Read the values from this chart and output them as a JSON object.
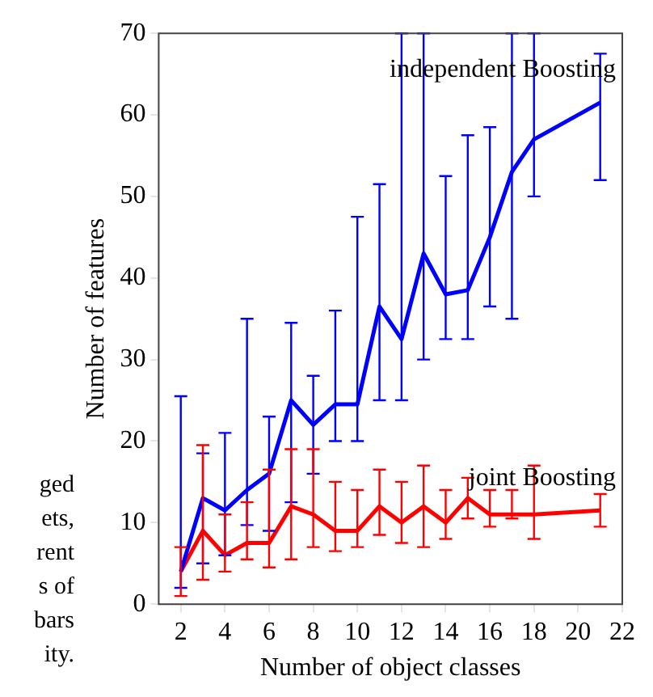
{
  "chart_data": {
    "type": "line",
    "xlabel": "Number of object classes",
    "ylabel": "Number of features",
    "x": [
      2,
      3,
      4,
      5,
      6,
      7,
      8,
      9,
      10,
      11,
      12,
      13,
      14,
      15,
      16,
      17,
      18,
      21
    ],
    "series": [
      {
        "name": "independent Boosting",
        "color": "#0000ff",
        "values": [
          4,
          13,
          11.5,
          14,
          16,
          25,
          22,
          24.5,
          24.5,
          36.5,
          32.5,
          43,
          38,
          38.5,
          45,
          53,
          57,
          61.5
        ],
        "errors": [
          [
            2,
            25.5
          ],
          [
            5,
            18.5
          ],
          [
            6,
            21
          ],
          [
            9.7,
            35
          ],
          [
            9,
            23
          ],
          [
            12.5,
            34.5
          ],
          [
            16,
            28
          ],
          [
            20,
            36
          ],
          [
            20,
            47.5
          ],
          [
            25,
            51.5
          ],
          [
            25,
            70
          ],
          [
            30,
            70
          ],
          [
            32.5,
            52.5
          ],
          [
            32.5,
            57.5
          ],
          [
            36.5,
            58.5
          ],
          [
            35,
            70
          ],
          [
            50,
            70
          ],
          [
            52,
            67.5
          ]
        ]
      },
      {
        "name": "joint Boosting",
        "color": "#ff0000",
        "values": [
          4,
          9,
          6,
          7.5,
          7.5,
          12,
          11,
          9,
          9,
          12,
          10,
          12,
          10,
          13,
          11,
          11,
          11,
          11.5
        ],
        "errors": [
          [
            1,
            7
          ],
          [
            3,
            19.5
          ],
          [
            4,
            11
          ],
          [
            5.5,
            12.5
          ],
          [
            4.5,
            16.5
          ],
          [
            5.5,
            19
          ],
          [
            7,
            19
          ],
          [
            6.5,
            15
          ],
          [
            7,
            14
          ],
          [
            8.5,
            16.5
          ],
          [
            7.5,
            15
          ],
          [
            7,
            17
          ],
          [
            8,
            14
          ],
          [
            10.5,
            15.5
          ],
          [
            9.5,
            14
          ],
          [
            10.5,
            14
          ],
          [
            8,
            17
          ],
          [
            9.5,
            13.5
          ]
        ]
      }
    ],
    "xlim": [
      1,
      22
    ],
    "xticks": [
      2,
      4,
      6,
      8,
      10,
      12,
      14,
      16,
      18,
      20,
      22
    ],
    "ylim": [
      0,
      70
    ],
    "yticks": [
      0,
      10,
      20,
      30,
      40,
      50,
      60,
      70
    ],
    "grid": false,
    "legend": false,
    "marker": "none",
    "line_style": "solid",
    "annotations": [
      "ged",
      "ets,",
      "rent",
      "s of",
      "bars",
      "ity."
    ]
  }
}
